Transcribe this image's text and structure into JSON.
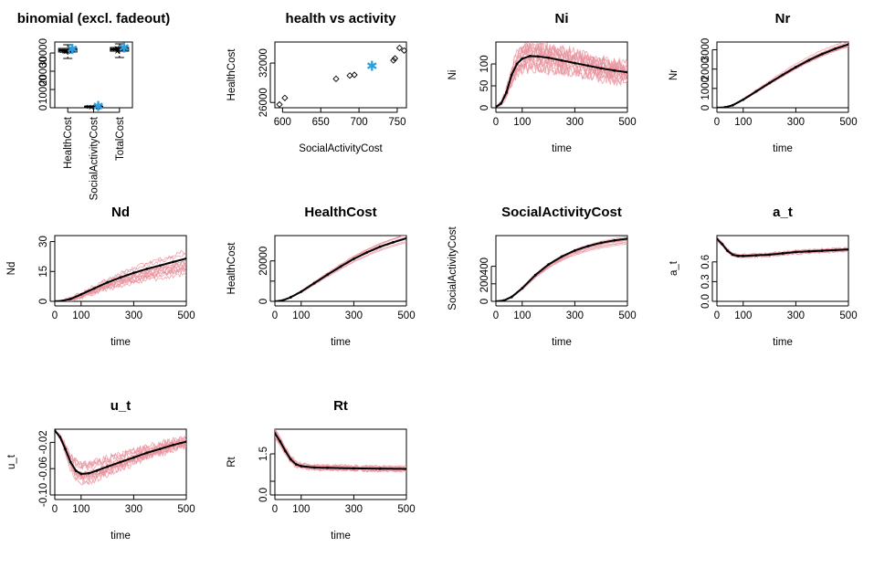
{
  "chart_data": [
    {
      "type": "box",
      "title": "binomial (excl. fadeout)",
      "categories": [
        "HealthCost",
        "SocialActivityCost",
        "TotalCost"
      ],
      "yticks": [
        0,
        10000,
        20000,
        30000
      ],
      "ytick_labels": [
        "0",
        "10000",
        "20000",
        "30000"
      ],
      "ylim": [
        0,
        36000
      ],
      "boxes": [
        {
          "min": 27000,
          "q1": 30500,
          "median": 31500,
          "q3": 32500,
          "max": 34500,
          "highlight": 32000
        },
        {
          "min": 300,
          "q1": 550,
          "median": 650,
          "q3": 700,
          "max": 760,
          "highlight": 720
        },
        {
          "min": 27500,
          "q1": 31000,
          "median": 32000,
          "q3": 33000,
          "max": 35000,
          "highlight": 32700
        }
      ],
      "highlight_color": "#2e9fdf"
    },
    {
      "type": "scatter",
      "title": "health vs activity",
      "xlabel": "SocialActivityCost",
      "ylabel": "HealthCost",
      "xlim": [
        590,
        762
      ],
      "ylim": [
        25200,
        35200
      ],
      "xticks": [
        600,
        650,
        700,
        750
      ],
      "yticks": [
        26000,
        32000
      ],
      "points": [
        {
          "x": 596,
          "y": 25700
        },
        {
          "x": 603,
          "y": 26700
        },
        {
          "x": 670,
          "y": 29600
        },
        {
          "x": 688,
          "y": 30100
        },
        {
          "x": 694,
          "y": 30200
        },
        {
          "x": 745,
          "y": 32400
        },
        {
          "x": 747,
          "y": 32700
        },
        {
          "x": 753,
          "y": 34300
        },
        {
          "x": 759,
          "y": 33900
        }
      ],
      "highlight": {
        "x": 717,
        "y": 31500
      },
      "highlight_color": "#2e9fdf"
    },
    {
      "type": "line",
      "title": "Ni",
      "xlabel": "time",
      "ylabel": "Ni",
      "xlim": [
        0,
        500
      ],
      "ylim": [
        0,
        150
      ],
      "xticks": [
        0,
        100,
        300,
        500
      ],
      "yticks": [
        0,
        50,
        100
      ],
      "mean": [
        [
          0,
          2
        ],
        [
          20,
          10
        ],
        [
          40,
          35
        ],
        [
          60,
          75
        ],
        [
          80,
          100
        ],
        [
          100,
          112
        ],
        [
          130,
          118
        ],
        [
          160,
          117
        ],
        [
          200,
          114
        ],
        [
          250,
          108
        ],
        [
          300,
          102
        ],
        [
          350,
          96
        ],
        [
          400,
          90
        ],
        [
          450,
          85
        ],
        [
          500,
          81
        ]
      ],
      "sims": 14,
      "noise": 14,
      "spread": 0.25
    },
    {
      "type": "line",
      "title": "Nr",
      "xlabel": "time",
      "ylabel": "Nr",
      "xlim": [
        0,
        500
      ],
      "ylim": [
        0,
        3400
      ],
      "xticks": [
        0,
        100,
        300,
        500
      ],
      "yticks": [
        0,
        1000,
        2000,
        3000
      ],
      "mean": [
        [
          0,
          0
        ],
        [
          30,
          20
        ],
        [
          60,
          130
        ],
        [
          100,
          420
        ],
        [
          150,
          850
        ],
        [
          200,
          1280
        ],
        [
          250,
          1700
        ],
        [
          300,
          2100
        ],
        [
          350,
          2460
        ],
        [
          400,
          2780
        ],
        [
          450,
          3050
        ],
        [
          500,
          3280
        ]
      ],
      "sims": 10,
      "noise": 20,
      "spread": 0.05
    },
    {
      "type": "line",
      "title": "Nd",
      "xlabel": "time",
      "ylabel": "Nd",
      "xlim": [
        0,
        500
      ],
      "ylim": [
        0,
        33
      ],
      "xticks": [
        0,
        100,
        300,
        500
      ],
      "yticks": [
        0,
        15,
        30
      ],
      "mean": [
        [
          0,
          0
        ],
        [
          30,
          0.3
        ],
        [
          60,
          1.2
        ],
        [
          100,
          3.5
        ],
        [
          150,
          6.5
        ],
        [
          200,
          9.5
        ],
        [
          250,
          12
        ],
        [
          300,
          14.3
        ],
        [
          350,
          16.3
        ],
        [
          400,
          18
        ],
        [
          450,
          19.8
        ],
        [
          500,
          21.5
        ]
      ],
      "sims": 12,
      "noise": 1.2,
      "spread": 0.35
    },
    {
      "type": "line",
      "title": "HealthCost",
      "xlabel": "time",
      "ylabel": "HealthCost",
      "xlim": [
        0,
        500
      ],
      "ylim": [
        0,
        32500
      ],
      "xticks": [
        0,
        100,
        300,
        500
      ],
      "yticks": [
        0,
        10000,
        20000
      ],
      "ytick_labels": [
        "0",
        "",
        "20000"
      ],
      "mean": [
        [
          0,
          0
        ],
        [
          30,
          500
        ],
        [
          60,
          2000
        ],
        [
          100,
          4800
        ],
        [
          150,
          9000
        ],
        [
          200,
          13200
        ],
        [
          250,
          17200
        ],
        [
          300,
          21000
        ],
        [
          350,
          24200
        ],
        [
          400,
          27000
        ],
        [
          450,
          29200
        ],
        [
          500,
          31200
        ]
      ],
      "sims": 10,
      "noise": 150,
      "spread": 0.1
    },
    {
      "type": "line",
      "title": "SocialActivityCost",
      "xlabel": "time",
      "ylabel": "SocialActivityCost",
      "xlim": [
        0,
        500
      ],
      "ylim": [
        0,
        750
      ],
      "xticks": [
        0,
        100,
        300,
        500
      ],
      "yticks": [
        0,
        200,
        400
      ],
      "mean": [
        [
          0,
          0
        ],
        [
          30,
          10
        ],
        [
          60,
          50
        ],
        [
          100,
          150
        ],
        [
          150,
          300
        ],
        [
          200,
          420
        ],
        [
          250,
          510
        ],
        [
          300,
          580
        ],
        [
          350,
          630
        ],
        [
          400,
          668
        ],
        [
          450,
          695
        ],
        [
          500,
          715
        ]
      ],
      "sims": 10,
      "noise": 4,
      "spread": 0.1
    },
    {
      "type": "line",
      "title": "a_t",
      "xlabel": "time",
      "ylabel": "a_t",
      "xlim": [
        0,
        500
      ],
      "ylim": [
        0,
        1.0
      ],
      "xticks": [
        0,
        100,
        300,
        500
      ],
      "yticks": [
        0.0,
        0.3,
        0.6
      ],
      "ytick_labels": [
        "0.0",
        "0.3",
        "0.6"
      ],
      "mean": [
        [
          0,
          0.95
        ],
        [
          20,
          0.87
        ],
        [
          40,
          0.77
        ],
        [
          60,
          0.71
        ],
        [
          80,
          0.69
        ],
        [
          100,
          0.69
        ],
        [
          150,
          0.7
        ],
        [
          200,
          0.71
        ],
        [
          250,
          0.73
        ],
        [
          300,
          0.75
        ],
        [
          350,
          0.76
        ],
        [
          400,
          0.77
        ],
        [
          450,
          0.78
        ],
        [
          500,
          0.79
        ]
      ],
      "sims": 12,
      "noise": 0.02,
      "spread": 0.03
    },
    {
      "type": "line",
      "title": "u_t",
      "xlabel": "time",
      "ylabel": "u_t",
      "xlim": [
        0,
        500
      ],
      "ylim": [
        -0.1,
        0.0
      ],
      "xticks": [
        0,
        100,
        300,
        500
      ],
      "yticks": [
        -0.1,
        -0.06,
        -0.02
      ],
      "ytick_labels": [
        "-0.10",
        "-0.06",
        "-0.02"
      ],
      "mean": [
        [
          0,
          -0.002
        ],
        [
          20,
          -0.012
        ],
        [
          40,
          -0.03
        ],
        [
          60,
          -0.05
        ],
        [
          80,
          -0.063
        ],
        [
          100,
          -0.068
        ],
        [
          130,
          -0.067
        ],
        [
          160,
          -0.063
        ],
        [
          200,
          -0.057
        ],
        [
          250,
          -0.05
        ],
        [
          300,
          -0.043
        ],
        [
          350,
          -0.036
        ],
        [
          400,
          -0.03
        ],
        [
          450,
          -0.024
        ],
        [
          500,
          -0.019
        ]
      ],
      "sims": 12,
      "noise": 0.006,
      "spread": 0.25
    },
    {
      "type": "line",
      "title": "Rt",
      "xlabel": "time",
      "ylabel": "Rt",
      "xlim": [
        0,
        500
      ],
      "ylim": [
        0,
        2.4
      ],
      "xticks": [
        0,
        100,
        300,
        500
      ],
      "yticks": [
        0.0,
        0.5,
        1.5
      ],
      "ytick_labels": [
        "0.0",
        "",
        "1.5"
      ],
      "mean": [
        [
          0,
          2.25
        ],
        [
          20,
          1.95
        ],
        [
          40,
          1.6
        ],
        [
          60,
          1.3
        ],
        [
          80,
          1.12
        ],
        [
          100,
          1.05
        ],
        [
          150,
          1.0
        ],
        [
          200,
          0.99
        ],
        [
          300,
          0.97
        ],
        [
          400,
          0.96
        ],
        [
          500,
          0.95
        ]
      ],
      "sims": 12,
      "noise": 0.06,
      "spread": 0.08
    }
  ],
  "styles": {
    "mean_color": "#000000",
    "sim_color": "#e8919c",
    "box_color": "#000000",
    "highlight_color": "#2e9fdf"
  }
}
